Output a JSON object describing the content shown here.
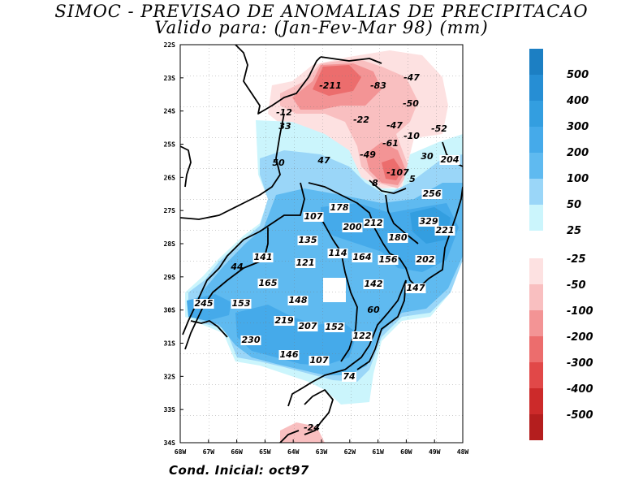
{
  "title": {
    "line1": "SIMOC - PREVISAO DE ANOMALIAS DE PRECIPITACAO",
    "line2": "Valido para: (Jan-Fev-Mar 98) (mm)"
  },
  "footer": "Cond. Inicial: oct97",
  "axes": {
    "x_labels": [
      "68W",
      "67W",
      "66W",
      "65W",
      "64W",
      "63W",
      "62W",
      "61W",
      "60W",
      "49W",
      "48W"
    ],
    "y_labels": [
      "22S",
      "23S",
      "24S",
      "25S",
      "26S",
      "27S",
      "28S",
      "29S",
      "30S",
      "31S",
      "32S",
      "33S",
      "34S"
    ]
  },
  "colorbar": {
    "positive": [
      {
        "label": "500",
        "color": "#1c7fc3"
      },
      {
        "label": "400",
        "color": "#268ed4"
      },
      {
        "label": "300",
        "color": "#339ee0"
      },
      {
        "label": "200",
        "color": "#45aaea"
      },
      {
        "label": "100",
        "color": "#5fbaf0"
      },
      {
        "label": "50",
        "color": "#9ad6f8"
      },
      {
        "label": "25",
        "color": "#cbf5fc"
      }
    ],
    "negative": [
      {
        "label": "-25",
        "color": "#fde1e1"
      },
      {
        "label": "-50",
        "color": "#f9bfc0"
      },
      {
        "label": "-100",
        "color": "#f39495"
      },
      {
        "label": "-200",
        "color": "#ec6d6d"
      },
      {
        "label": "-300",
        "color": "#e14848"
      },
      {
        "label": "-400",
        "color": "#cc2a2a"
      },
      {
        "label": "-500",
        "color": "#b41e1e"
      }
    ]
  },
  "map_values": [
    {
      "label": "-211",
      "v": -211
    },
    {
      "label": "-83",
      "v": -83
    },
    {
      "label": "-47",
      "v": -47
    },
    {
      "label": "-50",
      "v": -50
    },
    {
      "label": "-12",
      "v": -12
    },
    {
      "label": "33",
      "v": 33
    },
    {
      "label": "-22",
      "v": -22
    },
    {
      "label": "-47",
      "v": -47
    },
    {
      "label": "-10",
      "v": -10
    },
    {
      "label": "-52",
      "v": -52
    },
    {
      "label": "-61",
      "v": -61
    },
    {
      "label": "-49",
      "v": -49
    },
    {
      "label": "30",
      "v": 30
    },
    {
      "label": "204",
      "v": 204
    },
    {
      "label": "50",
      "v": 50
    },
    {
      "label": "47",
      "v": 47
    },
    {
      "label": "-107",
      "v": -107
    },
    {
      "label": "5",
      "v": 5
    },
    {
      "label": "8",
      "v": 8
    },
    {
      "label": "256",
      "v": 256
    },
    {
      "label": "178",
      "v": 178
    },
    {
      "label": "107",
      "v": 107
    },
    {
      "label": "212",
      "v": 212
    },
    {
      "label": "200",
      "v": 200
    },
    {
      "label": "329",
      "v": 329
    },
    {
      "label": "221",
      "v": 221
    },
    {
      "label": "135",
      "v": 135
    },
    {
      "label": "180",
      "v": 180
    },
    {
      "label": "141",
      "v": 141
    },
    {
      "label": "114",
      "v": 114
    },
    {
      "label": "164",
      "v": 164
    },
    {
      "label": "156",
      "v": 156
    },
    {
      "label": "202",
      "v": 202
    },
    {
      "label": "44",
      "v": 44
    },
    {
      "label": "121",
      "v": 121
    },
    {
      "label": "165",
      "v": 165
    },
    {
      "label": "142",
      "v": 142
    },
    {
      "label": "147",
      "v": 147
    },
    {
      "label": "245",
      "v": 245
    },
    {
      "label": "153",
      "v": 153
    },
    {
      "label": "148",
      "v": 148
    },
    {
      "label": "60",
      "v": 60
    },
    {
      "label": "219",
      "v": 219
    },
    {
      "label": "207",
      "v": 207
    },
    {
      "label": "152",
      "v": 152
    },
    {
      "label": "122",
      "v": 122
    },
    {
      "label": "230",
      "v": 230
    },
    {
      "label": "146",
      "v": 146
    },
    {
      "label": "107",
      "v": 107
    },
    {
      "label": "74",
      "v": 74
    },
    {
      "label": "-24",
      "v": -24
    }
  ]
}
